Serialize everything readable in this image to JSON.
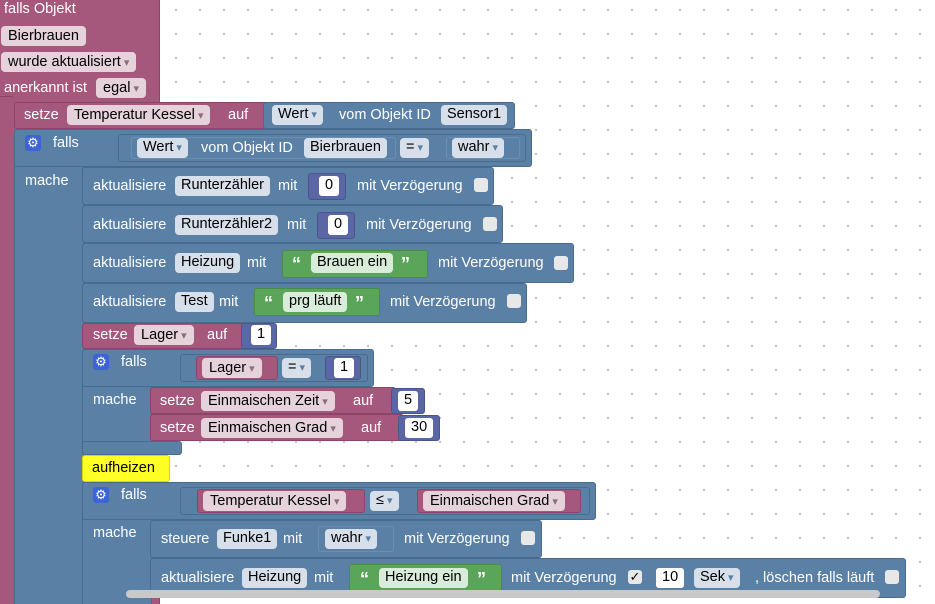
{
  "trigger": {
    "line1": "falls Objekt",
    "object_id": "Bierbrauen",
    "event": "wurde aktualisiert",
    "ack_label": "anerkannt ist",
    "ack_value": "egal"
  },
  "set_temp": {
    "setze": "setze",
    "var": "Temperatur Kessel",
    "auf": "auf",
    "wert": "Wert",
    "vom_objekt": "vom Objekt ID",
    "object": "Sensor1"
  },
  "if1": {
    "falls": "falls",
    "mache": "mache",
    "wert": "Wert",
    "vom_objekt": "vom Objekt ID",
    "object": "Bierbrauen",
    "op": "=",
    "value": "wahr"
  },
  "updates": [
    {
      "label": "aktualisiere",
      "target": "Runterzähler",
      "mit": "mit",
      "value": "0",
      "delay": "mit Verzögerung"
    },
    {
      "label": "aktualisiere",
      "target": "Runterzähler2",
      "mit": "mit",
      "value": "0",
      "delay": "mit Verzögerung"
    },
    {
      "label": "aktualisiere",
      "target": "Heizung",
      "mit": "mit",
      "value": "Brauen ein",
      "delay": "mit Verzögerung"
    },
    {
      "label": "aktualisiere",
      "target": "Test",
      "mit": "mit",
      "value": "prg läuft",
      "delay": "mit Verzögerung"
    }
  ],
  "set_lager": {
    "setze": "setze",
    "var": "Lager",
    "auf": "auf",
    "value": "1"
  },
  "if2": {
    "falls": "falls",
    "mache": "mache",
    "var": "Lager",
    "op": "=",
    "value": "1",
    "set1": {
      "setze": "setze",
      "var": "Einmaischen Zeit",
      "auf": "auf",
      "value": "5"
    },
    "set2": {
      "setze": "setze",
      "var": "Einmaischen Grad",
      "auf": "auf",
      "value": "30"
    }
  },
  "comment": "aufheizen",
  "if3": {
    "falls": "falls",
    "mache": "mache",
    "left": "Temperatur Kessel",
    "op": "≤",
    "right": "Einmaischen Grad",
    "steuere": {
      "label": "steuere",
      "target": "Funke1",
      "mit": "mit",
      "value": "wahr",
      "delay": "mit Verzögerung"
    },
    "update": {
      "label": "aktualisiere",
      "target": "Heizung",
      "mit": "mit",
      "value": "Heizung ein",
      "delay": "mit Verzögerung",
      "check": "✓",
      "time": "10",
      "unit": "Sek",
      "cancel": ", löschen falls läuft"
    }
  },
  "icons": {
    "gear": "⚙",
    "quote_open": "“",
    "quote_close": "”"
  },
  "colors": {
    "logic": "#5b80a5",
    "variable": "#a5587c",
    "text": "#5ba55b",
    "math": "#5b67a5",
    "comment": "#ffff26",
    "gear": "#3e63d6"
  }
}
